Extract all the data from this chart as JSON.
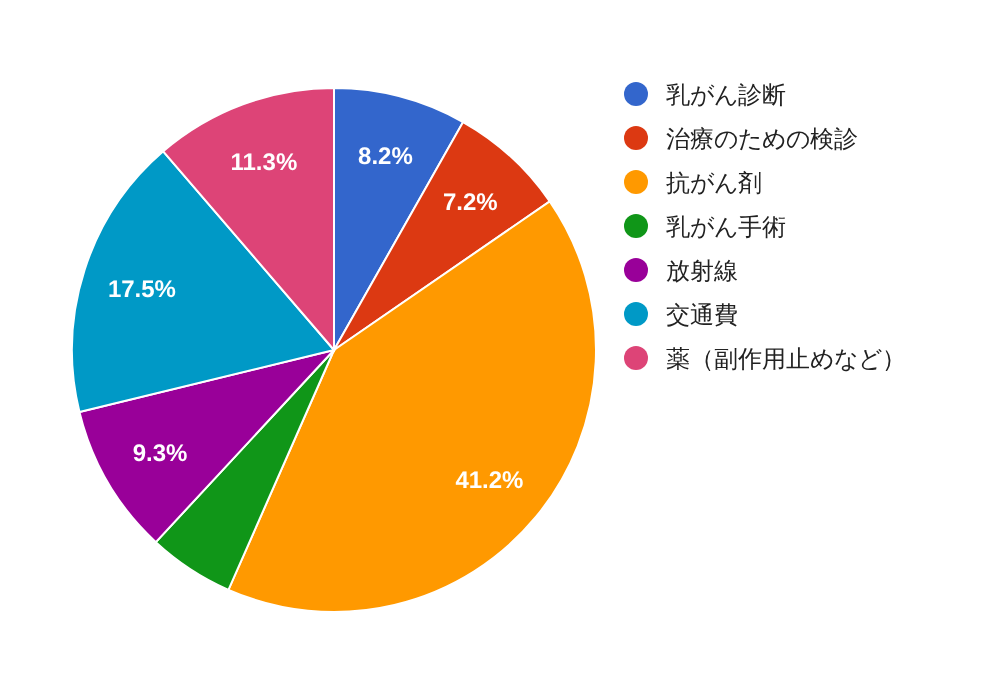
{
  "chart_data": {
    "type": "pie",
    "legend": "right",
    "categories": [
      "乳がん診断",
      "治療のための検診",
      "抗がん剤",
      "乳がん手術",
      "放射線",
      "交通費",
      "薬（副作用止めなど）"
    ],
    "values": [
      8.2,
      7.2,
      41.2,
      5.3,
      9.3,
      17.5,
      11.3
    ],
    "colors": [
      "#3366cc",
      "#dc3912",
      "#ff9900",
      "#109618",
      "#990099",
      "#0099c6",
      "#dd4477"
    ],
    "value_labels": [
      "8.2%",
      "7.2%",
      "41.2%",
      null,
      "9.3%",
      "17.5%",
      "11.3%"
    ]
  }
}
